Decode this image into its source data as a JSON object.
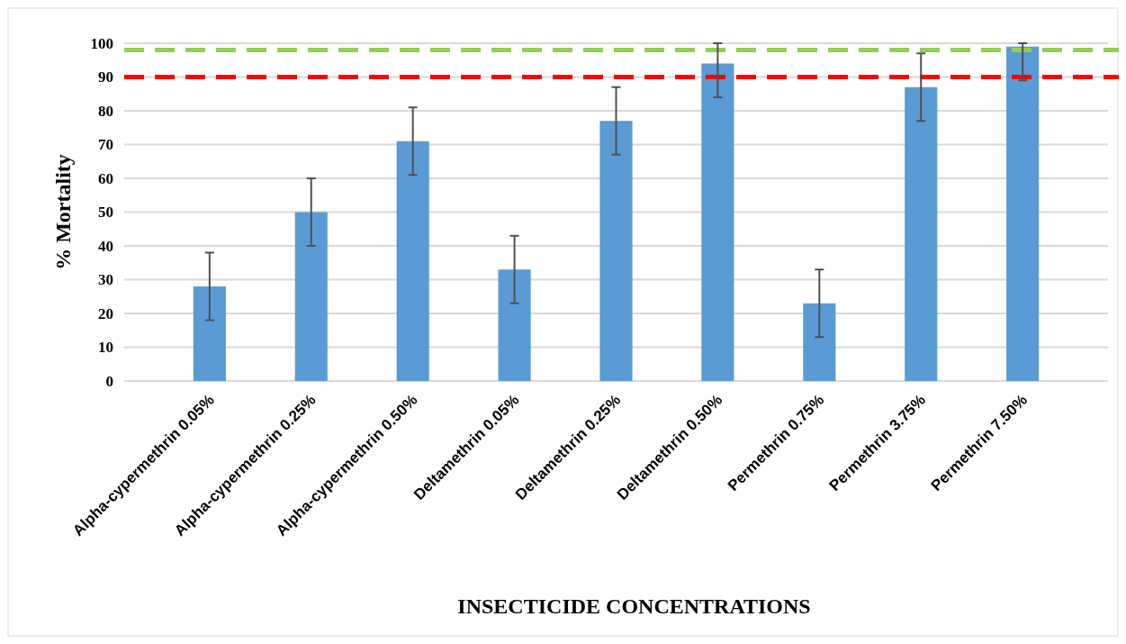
{
  "chart_data": {
    "type": "bar",
    "xlabel": "INSECTICIDE CONCENTRATIONS",
    "ylabel": "% Mortality",
    "categories": [
      "Alpha-cypermethrin 0.05%",
      "Alpha-cypermethrin 0.25%",
      "Alpha-cypermethrin 0.50%",
      "Deltamethrin 0.05%",
      "Deltamethrin 0.25%",
      "Deltamethrin 0.50%",
      "Permethrin 0.75%",
      "Permethrin 3.75%",
      "Permethrin 7.50%"
    ],
    "values": [
      28,
      50,
      71,
      33,
      77,
      94,
      23,
      87,
      99
    ],
    "errors": [
      10,
      10,
      10,
      10,
      10,
      [
        84,
        100
      ],
      10,
      10,
      [
        89,
        100
      ]
    ],
    "color": "#5b9bd5",
    "ylim": [
      0,
      100
    ],
    "yticks": [
      0,
      10,
      20,
      30,
      40,
      50,
      60,
      70,
      80,
      90,
      100
    ],
    "grid": "y",
    "ref_lines": [
      {
        "axis": "y",
        "value": 98,
        "color": "#92d050",
        "line_style": "dashed"
      },
      {
        "axis": "y",
        "value": 90,
        "color": "#ff0000",
        "line_style": "dashed"
      }
    ]
  }
}
